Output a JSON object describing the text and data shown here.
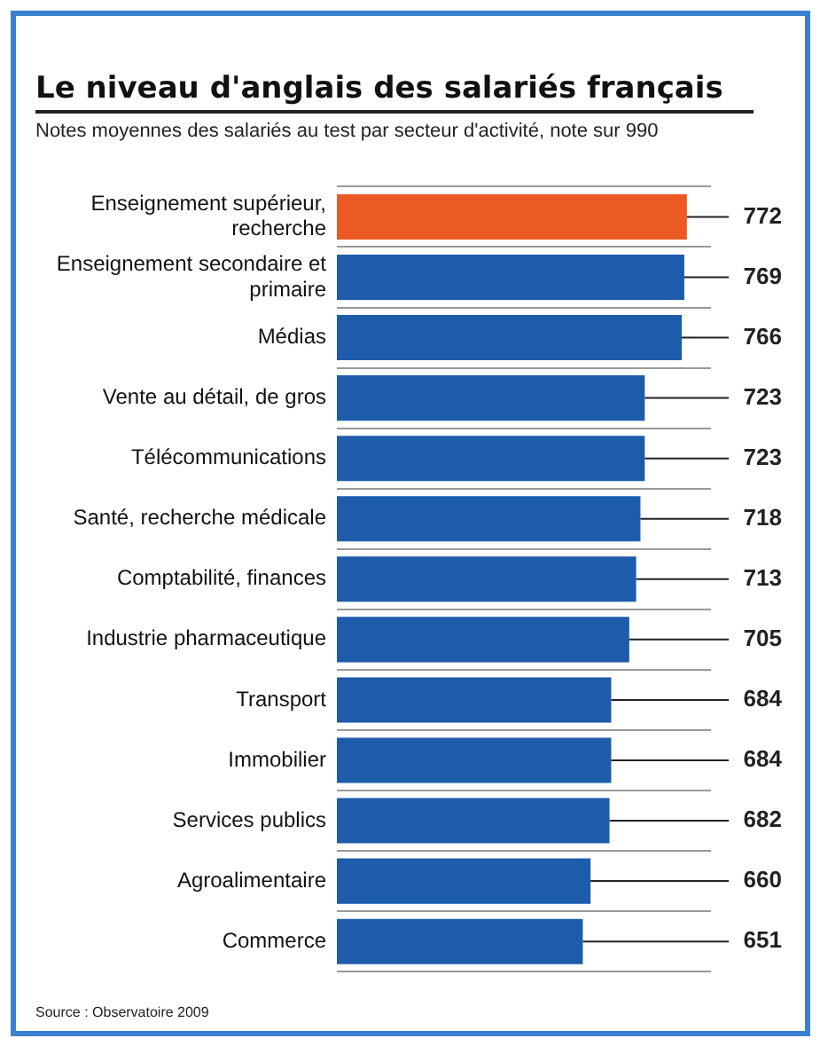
{
  "chart_data": {
    "type": "bar",
    "orientation": "horizontal",
    "title": "Le niveau d'anglais des salariés français",
    "subtitle": "Notes moyennes des salariés au test par secteur d'activité, note sur 990",
    "categories": [
      "Enseignement supérieur, recherche",
      "Enseignement secondaire et primaire",
      "Médias",
      "Vente au détail, de gros",
      "Télécommunications",
      "Santé, recherche médicale",
      "Comptabilité, finances",
      "Industrie pharmaceutique",
      "Transport",
      "Immobilier",
      "Services publics",
      "Agroalimentaire",
      "Commerce"
    ],
    "values": [
      772,
      769,
      766,
      723,
      723,
      718,
      713,
      705,
      684,
      684,
      682,
      660,
      651
    ],
    "colors": [
      "#ec5a24",
      "#1d5cab",
      "#1d5cab",
      "#1d5cab",
      "#1d5cab",
      "#1d5cab",
      "#1d5cab",
      "#1d5cab",
      "#1d5cab",
      "#1d5cab",
      "#1d5cab",
      "#1d5cab",
      "#1d5cab"
    ],
    "xlim": [
      365,
      800
    ],
    "tick_labels": "y",
    "grid": "y",
    "data_labels": true,
    "legend": false,
    "annotations": [
      "Source : Observatoire 2009"
    ]
  }
}
